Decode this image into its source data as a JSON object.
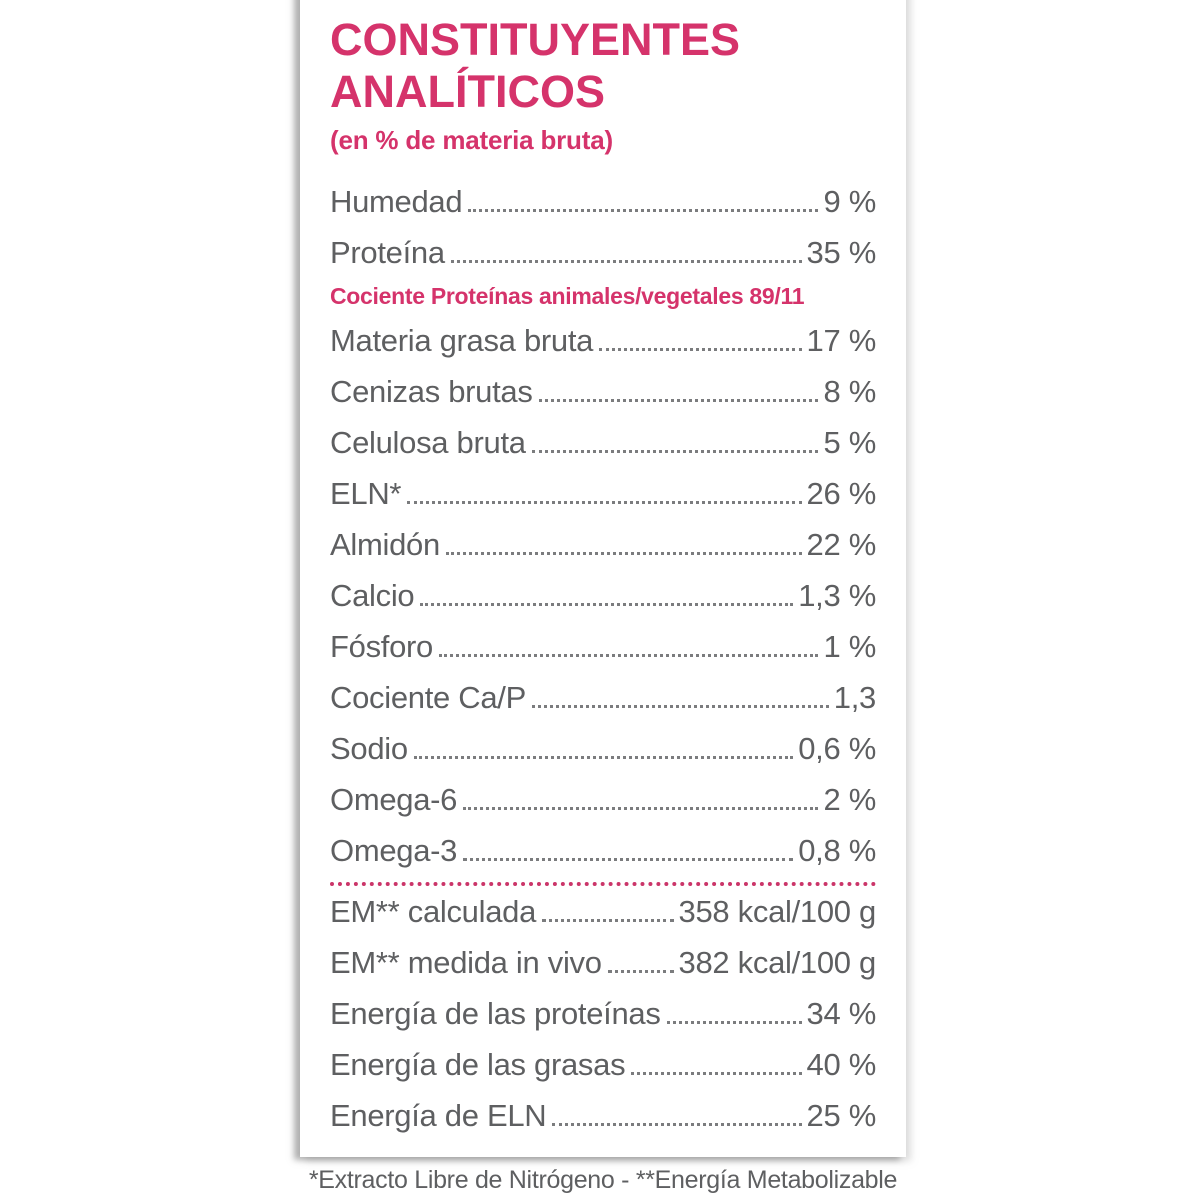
{
  "colors": {
    "accent": "#d5336b",
    "text": "#5e5f61",
    "leader_dots": "#7b7c7e",
    "divider_dots": "#cb3569",
    "panel_background": "#ffffff"
  },
  "panel": {
    "title_line1": "CONSTITUYENTES",
    "title_line2": "ANALÍTICOS",
    "subtitle": "(en % de materia bruta)",
    "rows": [
      {
        "type": "item",
        "label": "Humedad",
        "value": "9 %"
      },
      {
        "type": "item",
        "label": "Proteína",
        "value": "35 %"
      },
      {
        "type": "highlight",
        "label": "Cociente Proteínas animales/vegetales 89/11"
      },
      {
        "type": "item",
        "label": "Materia grasa bruta",
        "value": "17 %"
      },
      {
        "type": "item",
        "label": "Cenizas brutas",
        "value": "8 %"
      },
      {
        "type": "item",
        "label": "Celulosa bruta",
        "value": "5 %"
      },
      {
        "type": "item",
        "label": "ELN*",
        "value": "26 %"
      },
      {
        "type": "item",
        "label": "Almidón",
        "value": "22 %"
      },
      {
        "type": "item",
        "label": "Calcio",
        "value": "1,3 %"
      },
      {
        "type": "item",
        "label": "Fósforo",
        "value": "1 %"
      },
      {
        "type": "item",
        "label": "Cociente Ca/P",
        "value": "1,3"
      },
      {
        "type": "item",
        "label": "Sodio",
        "value": "0,6 %"
      },
      {
        "type": "item",
        "label": "Omega-6",
        "value": "2 %"
      },
      {
        "type": "item",
        "label": "Omega-3",
        "value": "0,8 %"
      },
      {
        "type": "divider"
      },
      {
        "type": "item",
        "label": "EM** calculada",
        "value": "358 kcal/100 g"
      },
      {
        "type": "item",
        "label": "EM** medida in vivo",
        "value": "382 kcal/100 g"
      },
      {
        "type": "item",
        "label": "Energía de las proteínas",
        "value": "34 %"
      },
      {
        "type": "item",
        "label": "Energía de las grasas",
        "value": "40 %"
      },
      {
        "type": "item",
        "label": "Energía de ELN",
        "value": "25 %"
      }
    ],
    "footnote": "*Extracto Libre de Nitrógeno - **Energía Metabolizable"
  }
}
